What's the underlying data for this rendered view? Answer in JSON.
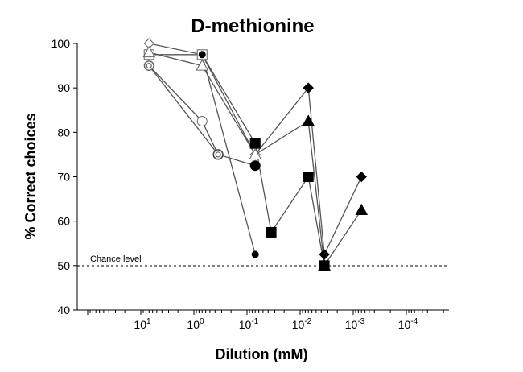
{
  "chart_data": {
    "type": "line",
    "title": "D-methionine",
    "xlabel": "Dilution (mM)",
    "ylabel": "% Correct choices",
    "x_scale": "log",
    "x_direction": "decreasing",
    "ylim": [
      40,
      100
    ],
    "y_ticks": [
      40,
      50,
      60,
      70,
      80,
      90,
      100
    ],
    "x_ticks": [
      {
        "value": 10,
        "base": "10",
        "exp": "1"
      },
      {
        "value": 1,
        "base": "10",
        "exp": "0"
      },
      {
        "value": 0.1,
        "base": "10",
        "exp": "-1"
      },
      {
        "value": 0.01,
        "base": "10",
        "exp": "-2"
      },
      {
        "value": 0.001,
        "base": "10",
        "exp": "-3"
      },
      {
        "value": 0.0001,
        "base": "10",
        "exp": "-4"
      }
    ],
    "grid": false,
    "legend": "none",
    "reference_line": {
      "y": 50,
      "label": "Chance level",
      "style": "dashed"
    },
    "series": [
      {
        "marker": "diamond",
        "fill": "open",
        "points": [
          [
            7,
            100
          ],
          [
            0.7,
            97.5
          ],
          [
            0.07,
            75
          ],
          [
            0.007,
            90
          ]
        ]
      },
      {
        "marker": "diamond",
        "fill": "filled",
        "points": [
          [
            0.007,
            90
          ],
          [
            0.0035,
            52.5
          ],
          [
            0.0007,
            70
          ]
        ]
      },
      {
        "marker": "square",
        "fill": "open",
        "points": [
          [
            7,
            97.5
          ],
          [
            0.7,
            97.5
          ],
          [
            0.07,
            77.5
          ]
        ]
      },
      {
        "marker": "square",
        "fill": "filled",
        "points": [
          [
            0.07,
            77.5
          ],
          [
            0.035,
            57.5
          ],
          [
            0.007,
            70
          ],
          [
            0.0035,
            50
          ]
        ]
      },
      {
        "marker": "triangle",
        "fill": "open",
        "points": [
          [
            7,
            98
          ],
          [
            0.7,
            95
          ],
          [
            0.07,
            75
          ],
          [
            0.007,
            82.5
          ]
        ]
      },
      {
        "marker": "triangle",
        "fill": "filled",
        "points": [
          [
            0.007,
            82.5
          ],
          [
            0.0035,
            50
          ],
          [
            0.0007,
            62.5
          ]
        ]
      },
      {
        "marker": "circle",
        "fill": "open",
        "points": [
          [
            7,
            95
          ],
          [
            0.7,
            82.5
          ],
          [
            0.35,
            75
          ]
        ]
      },
      {
        "marker": "circle",
        "fill": "filled",
        "points": [
          [
            0.35,
            75
          ],
          [
            0.07,
            72.5
          ]
        ]
      },
      {
        "marker": "circle-double",
        "fill": "open",
        "points": [
          [
            7,
            95
          ],
          [
            0.35,
            75
          ]
        ]
      },
      {
        "marker": "small-circle",
        "fill": "filled",
        "points": [
          [
            0.7,
            97.5
          ],
          [
            0.07,
            52.5
          ]
        ]
      }
    ]
  }
}
